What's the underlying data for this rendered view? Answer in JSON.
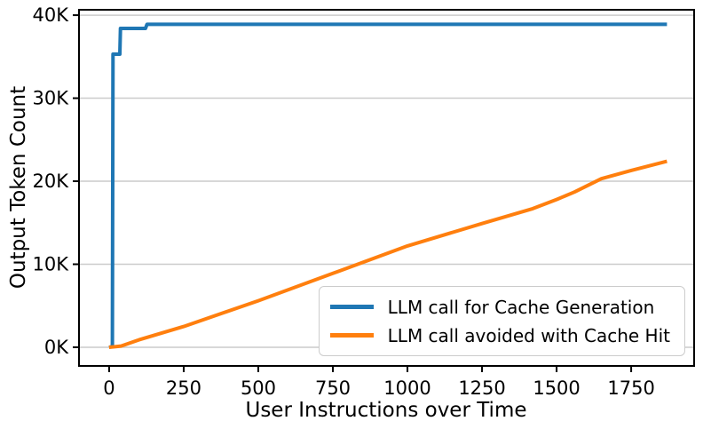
{
  "chart_data": {
    "type": "line",
    "title": "",
    "xlabel": "User Instructions over Time",
    "ylabel": "Output Token Count",
    "x_range": [
      -101,
      1961
    ],
    "y_range": [
      -2250,
      40650
    ],
    "grid": "horizontal gridlines at each y tick",
    "legend_position": "lower right",
    "x_ticks": {
      "values": [
        0,
        250,
        500,
        750,
        1000,
        1250,
        1500,
        1750
      ],
      "labels": [
        "0",
        "250",
        "500",
        "750",
        "1000",
        "1250",
        "1500",
        "1750"
      ]
    },
    "y_ticks": {
      "values": [
        0,
        10000,
        20000,
        30000,
        40000
      ],
      "labels": [
        "0K",
        "10K",
        "20K",
        "30K",
        "40K"
      ]
    },
    "series": [
      {
        "name": "LLM call for Cache Generation",
        "color": "#1f77b4",
        "points": [
          [
            0,
            0
          ],
          [
            11,
            100
          ],
          [
            13,
            35300
          ],
          [
            36,
            35300
          ],
          [
            38,
            38400
          ],
          [
            122,
            38400
          ],
          [
            127,
            38900
          ],
          [
            1870,
            38900
          ]
        ]
      },
      {
        "name": "LLM call avoided with Cache Hit",
        "color": "#ff7f0e",
        "points": [
          [
            0,
            0
          ],
          [
            40,
            150
          ],
          [
            100,
            900
          ],
          [
            250,
            2500
          ],
          [
            500,
            5600
          ],
          [
            750,
            8900
          ],
          [
            1000,
            12200
          ],
          [
            1250,
            14900
          ],
          [
            1420,
            16700
          ],
          [
            1500,
            17800
          ],
          [
            1560,
            18700
          ],
          [
            1650,
            20300
          ],
          [
            1750,
            21300
          ],
          [
            1870,
            22400
          ]
        ]
      }
    ]
  },
  "colors": {
    "grid": "#cccccc",
    "spine": "#000000",
    "tick": "#000000",
    "text": "#000000",
    "background": "#ffffff",
    "legend_border": "#cccccc"
  }
}
